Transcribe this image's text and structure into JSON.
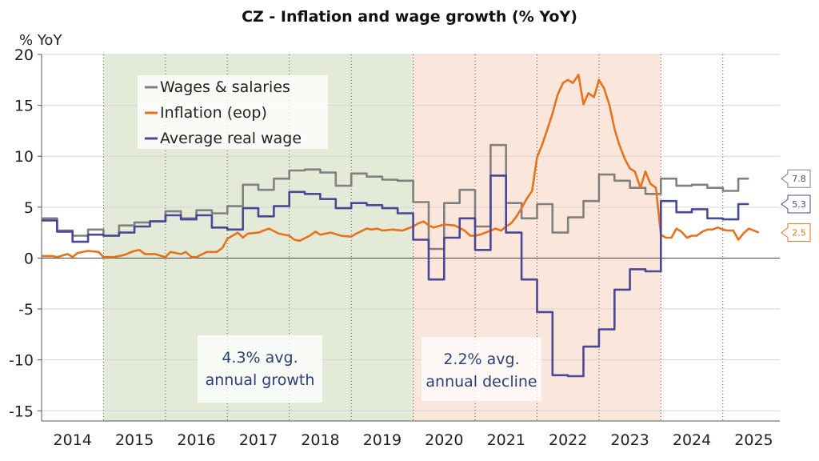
{
  "chart_data": {
    "type": "line",
    "title": "CZ - Inflation and wage growth (% YoY)",
    "ylabel": "% YoY",
    "ylim": [
      -16,
      20
    ],
    "yticks": [
      20,
      15,
      10,
      5,
      0,
      -5,
      -10,
      -15
    ],
    "years": [
      "2014",
      "2015",
      "2016",
      "2017",
      "2018",
      "2019",
      "2020",
      "2021",
      "2022",
      "2023",
      "2024",
      "2025"
    ],
    "xlim": [
      2014.0,
      2025.92
    ],
    "grid": true,
    "legend_position": "top-left",
    "shaded_periods": [
      {
        "start": 2015.0,
        "end": 2020.0,
        "color": "#e4ead8",
        "label_lines": [
          "4.3% avg.",
          "annual growth"
        ]
      },
      {
        "start": 2020.0,
        "end": 2024.0,
        "color": "#fbe6dc",
        "label_lines": [
          "2.2% avg.",
          "annual decline"
        ]
      }
    ],
    "series": [
      {
        "name": "Wages & salaries",
        "color": "#808080",
        "step": true,
        "end_label": "7.8",
        "points": [
          [
            2014.0,
            3.9
          ],
          [
            2014.25,
            2.7
          ],
          [
            2014.5,
            2.2
          ],
          [
            2014.75,
            2.8
          ],
          [
            2015.0,
            2.2
          ],
          [
            2015.25,
            3.2
          ],
          [
            2015.5,
            3.5
          ],
          [
            2015.75,
            3.6
          ],
          [
            2016.0,
            4.6
          ],
          [
            2016.25,
            3.9
          ],
          [
            2016.5,
            4.7
          ],
          [
            2016.75,
            4.4
          ],
          [
            2017.0,
            5.1
          ],
          [
            2017.25,
            7.2
          ],
          [
            2017.5,
            6.7
          ],
          [
            2017.75,
            7.8
          ],
          [
            2018.0,
            8.6
          ],
          [
            2018.25,
            8.7
          ],
          [
            2018.5,
            8.4
          ],
          [
            2018.75,
            7.1
          ],
          [
            2019.0,
            8.3
          ],
          [
            2019.25,
            8.0
          ],
          [
            2019.5,
            7.7
          ],
          [
            2019.75,
            7.6
          ],
          [
            2020.0,
            5.5
          ],
          [
            2020.25,
            0.9
          ],
          [
            2020.5,
            5.4
          ],
          [
            2020.75,
            6.7
          ],
          [
            2021.0,
            3.1
          ],
          [
            2021.25,
            11.1
          ],
          [
            2021.5,
            5.4
          ],
          [
            2021.75,
            3.9
          ],
          [
            2022.0,
            5.3
          ],
          [
            2022.25,
            2.5
          ],
          [
            2022.5,
            4.0
          ],
          [
            2022.75,
            5.6
          ],
          [
            2023.0,
            8.2
          ],
          [
            2023.25,
            7.6
          ],
          [
            2023.5,
            6.9
          ],
          [
            2023.75,
            6.3
          ],
          [
            2024.0,
            7.8
          ],
          [
            2024.25,
            7.1
          ],
          [
            2024.5,
            7.2
          ],
          [
            2024.75,
            6.9
          ],
          [
            2025.0,
            6.6
          ],
          [
            2025.25,
            7.8
          ],
          [
            2025.42,
            7.8
          ]
        ]
      },
      {
        "name": "Inflation (eop)",
        "color": "#e8721c",
        "step": false,
        "end_label": "2.5",
        "points": [
          [
            2014.0,
            0.2
          ],
          [
            2014.17,
            0.2
          ],
          [
            2014.25,
            0.1
          ],
          [
            2014.42,
            0.4
          ],
          [
            2014.5,
            0.1
          ],
          [
            2014.58,
            0.5
          ],
          [
            2014.75,
            0.7
          ],
          [
            2014.92,
            0.6
          ],
          [
            2015.0,
            0.1
          ],
          [
            2015.17,
            0.1
          ],
          [
            2015.33,
            0.3
          ],
          [
            2015.5,
            0.7
          ],
          [
            2015.58,
            0.8
          ],
          [
            2015.67,
            0.4
          ],
          [
            2015.83,
            0.4
          ],
          [
            2016.0,
            0.1
          ],
          [
            2016.08,
            0.6
          ],
          [
            2016.25,
            0.4
          ],
          [
            2016.33,
            0.6
          ],
          [
            2016.42,
            0.1
          ],
          [
            2016.5,
            0.1
          ],
          [
            2016.67,
            0.6
          ],
          [
            2016.83,
            0.6
          ],
          [
            2016.92,
            1.0
          ],
          [
            2017.0,
            1.9
          ],
          [
            2017.17,
            2.5
          ],
          [
            2017.25,
            2.0
          ],
          [
            2017.33,
            2.4
          ],
          [
            2017.5,
            2.5
          ],
          [
            2017.67,
            2.9
          ],
          [
            2017.83,
            2.4
          ],
          [
            2018.0,
            2.2
          ],
          [
            2018.08,
            1.8
          ],
          [
            2018.17,
            1.7
          ],
          [
            2018.33,
            2.2
          ],
          [
            2018.42,
            2.6
          ],
          [
            2018.5,
            2.3
          ],
          [
            2018.67,
            2.5
          ],
          [
            2018.83,
            2.2
          ],
          [
            2019.0,
            2.1
          ],
          [
            2019.08,
            2.4
          ],
          [
            2019.25,
            2.9
          ],
          [
            2019.33,
            2.8
          ],
          [
            2019.42,
            2.9
          ],
          [
            2019.5,
            2.7
          ],
          [
            2019.67,
            2.8
          ],
          [
            2019.83,
            2.7
          ],
          [
            2020.0,
            3.1
          ],
          [
            2020.08,
            3.4
          ],
          [
            2020.17,
            3.6
          ],
          [
            2020.25,
            3.2
          ],
          [
            2020.33,
            3.0
          ],
          [
            2020.5,
            3.3
          ],
          [
            2020.67,
            3.2
          ],
          [
            2020.83,
            2.7
          ],
          [
            2020.92,
            2.2
          ],
          [
            2021.0,
            2.2
          ],
          [
            2021.08,
            2.3
          ],
          [
            2021.25,
            2.7
          ],
          [
            2021.33,
            2.9
          ],
          [
            2021.42,
            2.7
          ],
          [
            2021.5,
            3.1
          ],
          [
            2021.58,
            3.4
          ],
          [
            2021.67,
            4.1
          ],
          [
            2021.75,
            4.9
          ],
          [
            2021.83,
            5.8
          ],
          [
            2021.92,
            6.6
          ],
          [
            2022.0,
            9.9
          ],
          [
            2022.08,
            11.1
          ],
          [
            2022.17,
            12.7
          ],
          [
            2022.25,
            14.2
          ],
          [
            2022.33,
            16.0
          ],
          [
            2022.42,
            17.2
          ],
          [
            2022.5,
            17.5
          ],
          [
            2022.58,
            17.2
          ],
          [
            2022.67,
            18.0
          ],
          [
            2022.75,
            15.1
          ],
          [
            2022.83,
            16.2
          ],
          [
            2022.92,
            15.8
          ],
          [
            2023.0,
            17.5
          ],
          [
            2023.08,
            16.7
          ],
          [
            2023.17,
            15.0
          ],
          [
            2023.25,
            12.7
          ],
          [
            2023.33,
            11.1
          ],
          [
            2023.42,
            9.7
          ],
          [
            2023.5,
            8.8
          ],
          [
            2023.58,
            8.5
          ],
          [
            2023.67,
            6.9
          ],
          [
            2023.75,
            8.5
          ],
          [
            2023.83,
            7.3
          ],
          [
            2023.92,
            6.9
          ],
          [
            2024.0,
            2.3
          ],
          [
            2024.08,
            2.0
          ],
          [
            2024.17,
            2.0
          ],
          [
            2024.25,
            2.9
          ],
          [
            2024.33,
            2.6
          ],
          [
            2024.42,
            2.0
          ],
          [
            2024.5,
            2.2
          ],
          [
            2024.58,
            2.2
          ],
          [
            2024.67,
            2.6
          ],
          [
            2024.75,
            2.8
          ],
          [
            2024.83,
            2.8
          ],
          [
            2024.92,
            3.0
          ],
          [
            2025.0,
            2.8
          ],
          [
            2025.08,
            2.7
          ],
          [
            2025.17,
            2.7
          ],
          [
            2025.25,
            1.8
          ],
          [
            2025.33,
            2.4
          ],
          [
            2025.42,
            2.9
          ],
          [
            2025.5,
            2.7
          ],
          [
            2025.58,
            2.5
          ]
        ]
      },
      {
        "name": "Average real wage",
        "color": "#4a4796",
        "step": true,
        "end_label": "5.3",
        "points": [
          [
            2014.0,
            3.7
          ],
          [
            2014.25,
            2.6
          ],
          [
            2014.5,
            1.6
          ],
          [
            2014.75,
            2.3
          ],
          [
            2015.0,
            2.2
          ],
          [
            2015.25,
            2.5
          ],
          [
            2015.5,
            3.1
          ],
          [
            2015.75,
            3.6
          ],
          [
            2016.0,
            4.2
          ],
          [
            2016.25,
            3.8
          ],
          [
            2016.5,
            4.2
          ],
          [
            2016.75,
            3.0
          ],
          [
            2017.0,
            2.8
          ],
          [
            2017.25,
            4.9
          ],
          [
            2017.5,
            4.1
          ],
          [
            2017.75,
            5.1
          ],
          [
            2018.0,
            6.5
          ],
          [
            2018.25,
            6.3
          ],
          [
            2018.5,
            5.8
          ],
          [
            2018.75,
            4.9
          ],
          [
            2019.0,
            5.4
          ],
          [
            2019.25,
            5.2
          ],
          [
            2019.5,
            4.9
          ],
          [
            2019.75,
            4.4
          ],
          [
            2020.0,
            1.8
          ],
          [
            2020.25,
            -2.1
          ],
          [
            2020.5,
            2.0
          ],
          [
            2020.75,
            3.9
          ],
          [
            2021.0,
            0.8
          ],
          [
            2021.25,
            8.1
          ],
          [
            2021.5,
            2.5
          ],
          [
            2021.75,
            -2.1
          ],
          [
            2022.0,
            -5.3
          ],
          [
            2022.25,
            -11.5
          ],
          [
            2022.5,
            -11.6
          ],
          [
            2022.75,
            -8.7
          ],
          [
            2023.0,
            -7.0
          ],
          [
            2023.25,
            -3.1
          ],
          [
            2023.5,
            -1.1
          ],
          [
            2023.75,
            -1.3
          ],
          [
            2024.0,
            5.6
          ],
          [
            2024.25,
            4.5
          ],
          [
            2024.5,
            4.8
          ],
          [
            2024.75,
            3.9
          ],
          [
            2025.0,
            3.8
          ],
          [
            2025.25,
            5.3
          ],
          [
            2025.42,
            5.3
          ]
        ]
      }
    ]
  }
}
